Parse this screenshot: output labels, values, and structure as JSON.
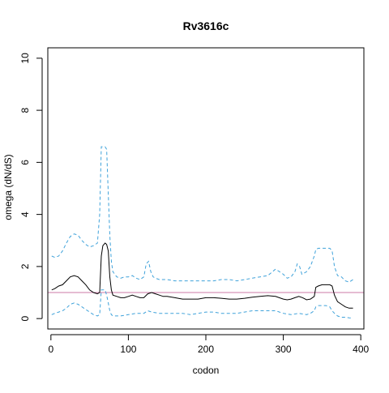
{
  "chart_data": {
    "type": "line",
    "title": "Rv3616c",
    "xlabel": "codon",
    "ylabel": "omega (dN/dS)",
    "xlim": [
      -4,
      404
    ],
    "ylim": [
      -0.4,
      10.4
    ],
    "x_ticks": [
      0,
      100,
      200,
      300,
      400
    ],
    "y_ticks": [
      0,
      2,
      4,
      6,
      8,
      10
    ],
    "grid": false,
    "reference_line": {
      "y": 1,
      "color": "#cc79a7"
    },
    "series": [
      {
        "role": "mean",
        "color": "#000000",
        "dash": "solid",
        "x": [
          1,
          5,
          10,
          15,
          20,
          25,
          30,
          35,
          40,
          45,
          50,
          55,
          60,
          63,
          65,
          67,
          70,
          72,
          74,
          76,
          78,
          80,
          85,
          90,
          95,
          100,
          105,
          110,
          115,
          120,
          125,
          130,
          135,
          140,
          145,
          150,
          160,
          170,
          180,
          190,
          200,
          210,
          220,
          230,
          240,
          250,
          260,
          270,
          280,
          290,
          300,
          305,
          310,
          315,
          320,
          325,
          330,
          335,
          340,
          342,
          345,
          350,
          355,
          360,
          363,
          366,
          370,
          375,
          380,
          385,
          390
        ],
        "y": [
          1.1,
          1.15,
          1.25,
          1.3,
          1.45,
          1.6,
          1.65,
          1.6,
          1.45,
          1.3,
          1.1,
          1.0,
          0.95,
          1.0,
          2.4,
          2.8,
          2.9,
          2.85,
          2.6,
          1.6,
          1.1,
          0.9,
          0.85,
          0.8,
          0.8,
          0.85,
          0.9,
          0.85,
          0.8,
          0.8,
          0.95,
          1.0,
          0.95,
          0.9,
          0.85,
          0.85,
          0.8,
          0.75,
          0.75,
          0.75,
          0.8,
          0.8,
          0.78,
          0.75,
          0.75,
          0.78,
          0.82,
          0.85,
          0.88,
          0.85,
          0.75,
          0.72,
          0.75,
          0.8,
          0.85,
          0.8,
          0.72,
          0.75,
          0.85,
          1.2,
          1.25,
          1.3,
          1.3,
          1.3,
          1.25,
          0.9,
          0.65,
          0.55,
          0.45,
          0.4,
          0.4
        ]
      },
      {
        "role": "upper",
        "color": "#3fa2da",
        "dash": "dashed",
        "x": [
          1,
          5,
          10,
          15,
          20,
          25,
          30,
          35,
          40,
          45,
          50,
          55,
          60,
          63,
          65,
          67,
          70,
          72,
          74,
          76,
          78,
          80,
          85,
          90,
          95,
          100,
          105,
          110,
          115,
          120,
          123,
          126,
          129,
          132,
          135,
          140,
          150,
          160,
          170,
          180,
          190,
          200,
          210,
          220,
          230,
          240,
          250,
          260,
          270,
          280,
          290,
          300,
          305,
          310,
          315,
          318,
          321,
          324,
          327,
          330,
          335,
          340,
          342,
          345,
          350,
          355,
          360,
          363,
          366,
          370,
          375,
          380,
          385,
          390
        ],
        "y": [
          2.4,
          2.35,
          2.4,
          2.6,
          2.9,
          3.15,
          3.25,
          3.2,
          3.0,
          2.85,
          2.75,
          2.8,
          2.9,
          4.0,
          6.6,
          6.6,
          6.6,
          6.5,
          4.8,
          3.2,
          2.2,
          1.8,
          1.6,
          1.55,
          1.6,
          1.6,
          1.65,
          1.55,
          1.5,
          1.6,
          2.1,
          2.2,
          1.8,
          1.6,
          1.55,
          1.5,
          1.5,
          1.45,
          1.45,
          1.45,
          1.45,
          1.45,
          1.45,
          1.5,
          1.5,
          1.45,
          1.5,
          1.55,
          1.6,
          1.65,
          1.9,
          1.7,
          1.55,
          1.6,
          1.8,
          2.1,
          2.0,
          1.7,
          1.75,
          1.8,
          2.0,
          2.4,
          2.65,
          2.7,
          2.7,
          2.7,
          2.7,
          2.6,
          2.0,
          1.65,
          1.6,
          1.45,
          1.4,
          1.5
        ]
      },
      {
        "role": "lower",
        "color": "#3fa2da",
        "dash": "dashed",
        "x": [
          1,
          5,
          10,
          15,
          20,
          25,
          30,
          35,
          40,
          45,
          50,
          55,
          60,
          63,
          65,
          67,
          70,
          72,
          74,
          76,
          78,
          80,
          85,
          90,
          100,
          110,
          120,
          125,
          130,
          140,
          150,
          160,
          170,
          180,
          190,
          200,
          210,
          220,
          230,
          240,
          250,
          260,
          270,
          280,
          290,
          300,
          310,
          320,
          330,
          335,
          340,
          342,
          345,
          350,
          355,
          360,
          363,
          366,
          370,
          375,
          380,
          385,
          390
        ],
        "y": [
          0.15,
          0.2,
          0.25,
          0.3,
          0.4,
          0.55,
          0.6,
          0.55,
          0.45,
          0.35,
          0.25,
          0.15,
          0.1,
          0.15,
          1.1,
          1.1,
          1.1,
          0.9,
          0.6,
          0.3,
          0.15,
          0.1,
          0.1,
          0.1,
          0.15,
          0.2,
          0.2,
          0.3,
          0.25,
          0.2,
          0.2,
          0.2,
          0.2,
          0.15,
          0.2,
          0.25,
          0.25,
          0.2,
          0.2,
          0.2,
          0.25,
          0.3,
          0.3,
          0.3,
          0.3,
          0.2,
          0.15,
          0.2,
          0.15,
          0.2,
          0.3,
          0.45,
          0.5,
          0.5,
          0.5,
          0.45,
          0.3,
          0.2,
          0.1,
          0.05,
          0.05,
          0.03,
          0.02
        ]
      }
    ]
  }
}
